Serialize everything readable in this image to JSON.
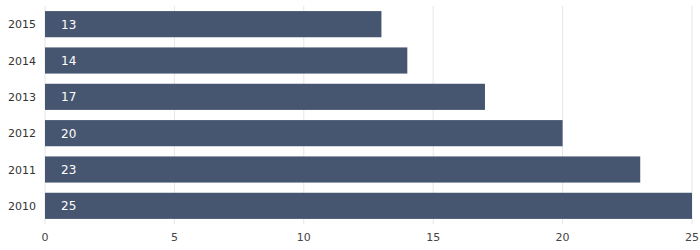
{
  "chart_data": {
    "type": "bar",
    "orientation": "horizontal",
    "categories": [
      "2015",
      "2014",
      "2013",
      "2012",
      "2011",
      "2010"
    ],
    "values": [
      13,
      14,
      17,
      20,
      23,
      25
    ],
    "color": "#465670",
    "xlim": [
      0,
      25
    ],
    "xticks": [
      0,
      5,
      10,
      15,
      20,
      25
    ],
    "grid": true,
    "data_labels": true
  }
}
